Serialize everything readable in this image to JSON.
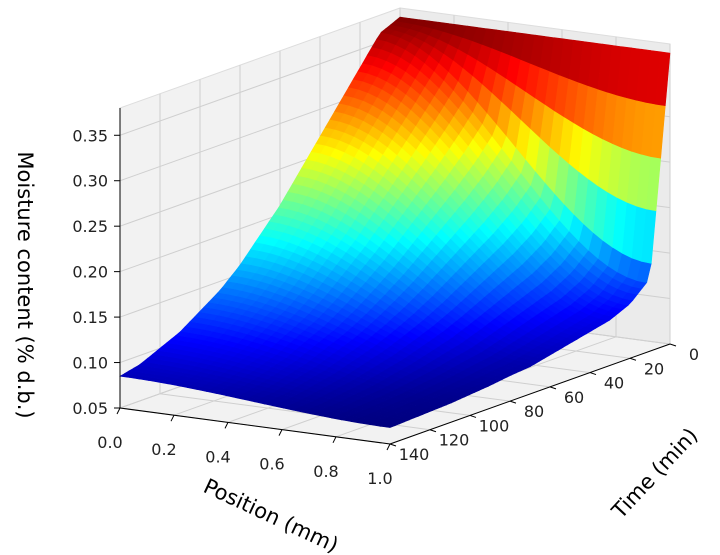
{
  "chart_data": {
    "type": "surface3d",
    "title": "",
    "xlabel": "Position (mm)",
    "ylabel": "Time (min)",
    "zlabel": "Moisture content (% d.b.)",
    "x_ticks": [
      "0.0",
      "0.2",
      "0.4",
      "0.6",
      "0.8",
      "1.0"
    ],
    "y_ticks": [
      "0",
      "20",
      "40",
      "60",
      "80",
      "100",
      "120",
      "140"
    ],
    "z_ticks": [
      "0.05",
      "0.10",
      "0.15",
      "0.20",
      "0.25",
      "0.30",
      "0.35"
    ],
    "xlim": [
      0,
      1
    ],
    "ylim": [
      0,
      140
    ],
    "zlim": [
      0.05,
      0.38
    ],
    "colormap": "jet",
    "grid": true,
    "position_mm": [
      0.0,
      0.1,
      0.2,
      0.3,
      0.4,
      0.5,
      0.6,
      0.7,
      0.8,
      0.9,
      1.0
    ],
    "time_min": [
      0,
      10,
      20,
      30,
      40,
      50,
      60,
      70,
      80,
      90,
      100,
      110,
      120,
      130,
      140
    ],
    "moisture_at_x0": [
      0.37,
      0.36,
      0.33,
      0.3,
      0.27,
      0.24,
      0.21,
      0.185,
      0.16,
      0.14,
      0.125,
      0.11,
      0.1,
      0.09,
      0.085
    ],
    "moisture_at_x1": [
      0.37,
      0.13,
      0.11,
      0.1,
      0.095,
      0.09,
      0.085,
      0.08,
      0.078,
      0.075,
      0.073,
      0.071,
      0.07,
      0.069,
      0.068
    ]
  },
  "axes": {
    "x_label": "Position (mm)",
    "y_label": "Time (min)",
    "z_label": "Moisture content (% d.b.)"
  }
}
